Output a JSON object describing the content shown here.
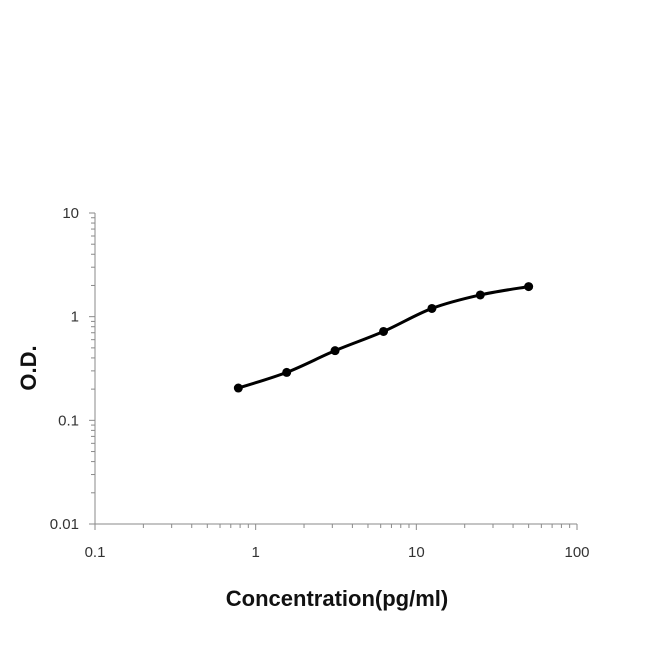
{
  "chart_data": {
    "type": "scatter",
    "title": "",
    "xlabel": "Concentration(pg/ml)",
    "ylabel": "O.D.",
    "xscale": "log",
    "yscale": "log",
    "xlim": [
      0.1,
      100
    ],
    "ylim": [
      0.01,
      10
    ],
    "x_ticks": [
      "0.1",
      "1",
      "10",
      "100"
    ],
    "y_ticks": [
      "0.01",
      "0.1",
      "1",
      "10"
    ],
    "grid": false,
    "legend": "none",
    "trendline": "smooth",
    "series": [
      {
        "x": [
          0.78,
          1.56,
          3.12,
          6.25,
          12.5,
          25,
          50
        ],
        "y": [
          0.205,
          0.29,
          0.47,
          0.72,
          1.2,
          1.62,
          1.95
        ],
        "color": "#000000"
      }
    ]
  }
}
